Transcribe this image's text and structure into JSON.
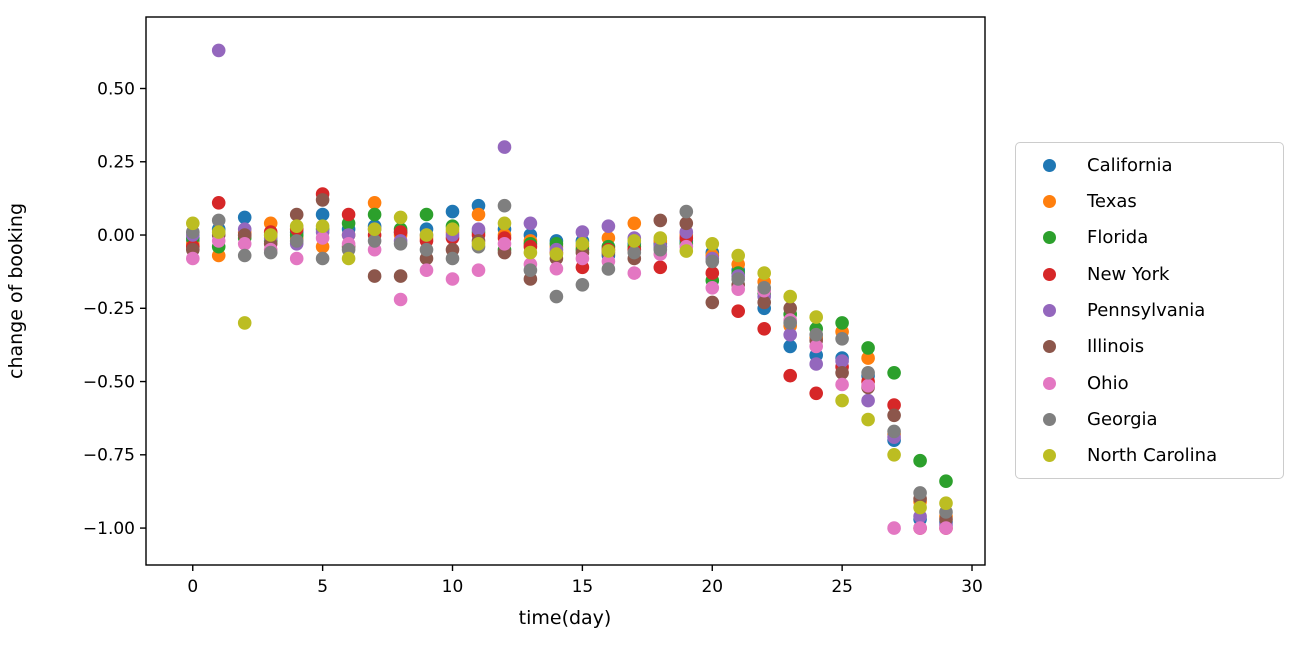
{
  "chart_data": {
    "type": "scatter",
    "title": "",
    "xlabel": "time(day)",
    "ylabel": "change of booking",
    "grid": false,
    "legend_position": "right-outside",
    "xlim": [
      -1.8,
      30.5
    ],
    "ylim": [
      -1.126,
      0.744
    ],
    "x_ticks": [
      0,
      5,
      10,
      15,
      20,
      25,
      30
    ],
    "y_ticks": [
      0.5,
      0.25,
      0.0,
      -0.25,
      -0.5,
      -0.75,
      -1.0
    ],
    "x": [
      0,
      1,
      2,
      3,
      4,
      5,
      6,
      7,
      8,
      9,
      10,
      11,
      12,
      13,
      14,
      15,
      16,
      17,
      18,
      19,
      20,
      21,
      22,
      23,
      24,
      25,
      26,
      27,
      28,
      29
    ],
    "series": [
      {
        "name": "California",
        "color": "#1f77b4",
        "values": [
          -0.02,
          0.02,
          0.06,
          0.0,
          0.01,
          0.07,
          0.02,
          0.03,
          0.01,
          0.02,
          0.08,
          0.1,
          0.02,
          0.0,
          -0.02,
          -0.02,
          -0.07,
          -0.03,
          -0.03,
          -0.02,
          -0.06,
          -0.12,
          -0.25,
          -0.38,
          -0.41,
          -0.42,
          -0.48,
          -0.7,
          -0.97,
          -0.98
        ]
      },
      {
        "name": "Texas",
        "color": "#ff7f0e",
        "values": [
          -0.03,
          -0.07,
          0.01,
          0.04,
          -0.01,
          -0.04,
          0.0,
          0.11,
          0.0,
          -0.01,
          0.01,
          0.07,
          0.0,
          -0.02,
          -0.04,
          -0.04,
          -0.01,
          0.04,
          -0.02,
          0.0,
          -0.07,
          -0.1,
          -0.16,
          -0.31,
          -0.35,
          -0.33,
          -0.42,
          -0.68,
          -0.91,
          -0.96
        ]
      },
      {
        "name": "Florida",
        "color": "#2ca02c",
        "values": [
          -0.01,
          -0.04,
          -0.01,
          -0.02,
          0.0,
          0.02,
          0.04,
          0.07,
          0.02,
          0.07,
          0.03,
          0.01,
          -0.05,
          -0.03,
          -0.03,
          -0.05,
          -0.04,
          -0.04,
          -0.04,
          -0.03,
          -0.155,
          -0.13,
          -0.2,
          -0.27,
          -0.32,
          -0.3,
          -0.385,
          -0.47,
          -0.77,
          -0.84
        ]
      },
      {
        "name": "New York",
        "color": "#d62728",
        "values": [
          -0.04,
          0.11,
          0.0,
          0.01,
          0.02,
          0.14,
          0.07,
          0.0,
          0.01,
          -0.02,
          -0.01,
          0.0,
          -0.01,
          -0.04,
          -0.06,
          -0.11,
          -0.05,
          -0.05,
          -0.11,
          -0.01,
          -0.13,
          -0.26,
          -0.32,
          -0.48,
          -0.54,
          -0.45,
          -0.5,
          -0.58,
          -1.0,
          -1.0
        ]
      },
      {
        "name": "Pennsylvania",
        "color": "#9467bd",
        "values": [
          0.0,
          0.63,
          0.02,
          -0.01,
          -0.03,
          0.01,
          0.0,
          0.02,
          -0.02,
          0.0,
          0.0,
          0.02,
          0.3,
          0.04,
          -0.05,
          0.01,
          0.03,
          -0.01,
          -0.04,
          0.01,
          -0.08,
          -0.14,
          -0.21,
          -0.34,
          -0.44,
          -0.43,
          -0.565,
          -0.69,
          -0.96,
          -0.99
        ]
      },
      {
        "name": "Illinois",
        "color": "#8c564b",
        "values": [
          -0.05,
          0.0,
          0.0,
          -0.03,
          0.07,
          0.12,
          -0.04,
          -0.14,
          -0.14,
          -0.08,
          -0.05,
          -0.02,
          -0.06,
          -0.15,
          -0.08,
          -0.06,
          -0.06,
          -0.08,
          0.05,
          0.04,
          -0.23,
          -0.17,
          -0.23,
          -0.25,
          -0.36,
          -0.47,
          -0.52,
          -0.615,
          -0.9,
          -0.97
        ]
      },
      {
        "name": "Ohio",
        "color": "#e377c2",
        "values": [
          -0.08,
          -0.02,
          -0.03,
          -0.05,
          -0.08,
          -0.01,
          -0.03,
          -0.05,
          -0.22,
          -0.12,
          -0.15,
          -0.12,
          -0.03,
          -0.1,
          -0.115,
          -0.08,
          -0.09,
          -0.13,
          -0.065,
          -0.04,
          -0.18,
          -0.185,
          -0.19,
          -0.29,
          -0.38,
          -0.51,
          -0.514,
          -1.0,
          -1.0,
          -1.0
        ]
      },
      {
        "name": "Georgia",
        "color": "#7f7f7f",
        "values": [
          0.01,
          0.05,
          -0.07,
          -0.06,
          -0.02,
          -0.08,
          -0.05,
          -0.02,
          -0.03,
          -0.05,
          -0.08,
          -0.04,
          0.1,
          -0.12,
          -0.21,
          -0.17,
          -0.116,
          -0.06,
          -0.05,
          0.08,
          -0.09,
          -0.15,
          -0.18,
          -0.3,
          -0.34,
          -0.354,
          -0.47,
          -0.67,
          -0.88,
          -0.945
        ]
      },
      {
        "name": "North Carolina",
        "color": "#bcbd22",
        "values": [
          0.04,
          0.01,
          -0.3,
          0.0,
          0.03,
          0.03,
          -0.08,
          0.02,
          0.06,
          0.0,
          0.02,
          -0.03,
          0.04,
          -0.06,
          -0.065,
          -0.03,
          -0.054,
          -0.02,
          -0.01,
          -0.055,
          -0.03,
          -0.07,
          -0.13,
          -0.21,
          -0.28,
          -0.565,
          -0.63,
          -0.75,
          -0.93,
          -0.915
        ]
      }
    ]
  },
  "axes": {
    "frame_color": "#000000",
    "x_title": "time(day)",
    "y_title": "change of booking"
  }
}
